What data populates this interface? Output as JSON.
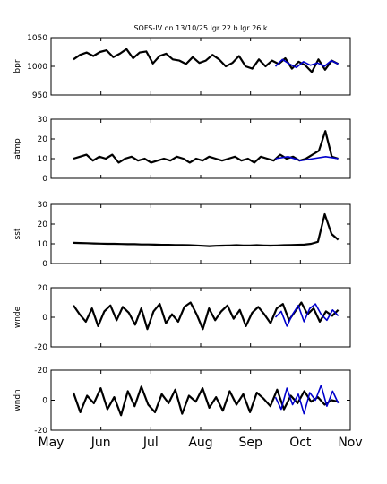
{
  "title": "SOFS-IV on 13/10/25 lgr 22 b lgr 26 k",
  "colors": {
    "primary": "#000000",
    "secondary": "#0000cc",
    "background": "#ffffff"
  },
  "chart_data": [
    {
      "type": "line",
      "ylabel": "bpr",
      "ylim": [
        950,
        1050
      ],
      "yticks": [
        "950",
        "1000",
        "1050"
      ],
      "series": [
        {
          "values": [
            1012,
            1020,
            1024,
            1018,
            1025,
            1028,
            1016,
            1022,
            1030,
            1014,
            1024,
            1026,
            1005,
            1018,
            1022,
            1012,
            1010,
            1004,
            1016,
            1006,
            1010,
            1020,
            1012,
            1000,
            1006,
            1018,
            1000,
            996,
            1012,
            1000,
            1010,
            1004,
            1014,
            996,
            1008,
            1002,
            990,
            1012,
            994,
            1010,
            1004
          ]
        },
        {
          "values": [
            1000,
            1012,
            1004,
            998,
            1008,
            1002,
            1006,
            1000,
            1010,
            1004
          ]
        }
      ]
    },
    {
      "type": "line",
      "ylabel": "atmp",
      "ylim": [
        0,
        30
      ],
      "yticks": [
        "0",
        "10",
        "20",
        "30"
      ],
      "series": [
        {
          "values": [
            10,
            11,
            12,
            9,
            11,
            10,
            12,
            8,
            10,
            11,
            9,
            10,
            8,
            9,
            10,
            9,
            11,
            10,
            8,
            10,
            9,
            11,
            10,
            9,
            10,
            11,
            9,
            10,
            8,
            11,
            10,
            9,
            12,
            10,
            11,
            9,
            10,
            12,
            14,
            24,
            11,
            10
          ]
        },
        {
          "values": [
            10,
            11,
            9,
            10,
            11,
            10
          ]
        }
      ]
    },
    {
      "type": "line",
      "ylabel": "sst",
      "ylim": [
        0,
        30
      ],
      "yticks": [
        "0",
        "10",
        "20",
        "30"
      ],
      "series": [
        {
          "values": [
            10.5,
            10.4,
            10.3,
            10.2,
            10.1,
            10.0,
            10.0,
            9.9,
            9.8,
            9.8,
            9.7,
            9.7,
            9.6,
            9.5,
            9.5,
            9.4,
            9.4,
            9.3,
            9.2,
            9.0,
            8.8,
            9.0,
            9.1,
            9.2,
            9.3,
            9.2,
            9.2,
            9.3,
            9.2,
            9.1,
            9.2,
            9.3,
            9.4,
            9.5,
            9.6,
            10,
            11,
            25,
            15,
            12
          ]
        }
      ]
    },
    {
      "type": "line",
      "ylabel": "wnde",
      "ylim": [
        -20,
        20
      ],
      "yticks": [
        "-20",
        "0",
        "20"
      ],
      "series": [
        {
          "values": [
            8,
            2,
            -3,
            6,
            -6,
            4,
            8,
            -2,
            7,
            3,
            -5,
            6,
            -8,
            4,
            9,
            -4,
            2,
            -3,
            7,
            10,
            2,
            -8,
            6,
            -2,
            4,
            8,
            -1,
            5,
            -6,
            3,
            7,
            2,
            -4,
            6,
            9,
            -2,
            4,
            10,
            2,
            6,
            -3,
            4,
            1,
            5
          ]
        },
        {
          "values": [
            0,
            4,
            -6,
            2,
            8,
            -3,
            6,
            9,
            2,
            -2,
            5,
            1
          ]
        }
      ]
    },
    {
      "type": "line",
      "ylabel": "wndn",
      "ylim": [
        -20,
        20
      ],
      "yticks": [
        "-20",
        "0",
        "20"
      ],
      "xticks": [
        "May",
        "Jun",
        "Jul",
        "Aug",
        "Sep",
        "Oct",
        "Nov"
      ],
      "series": [
        {
          "values": [
            5,
            -8,
            3,
            -2,
            8,
            -6,
            2,
            -10,
            6,
            -4,
            9,
            -3,
            -8,
            4,
            -2,
            7,
            -9,
            3,
            -1,
            8,
            -5,
            2,
            -7,
            6,
            -3,
            4,
            -8,
            5,
            1,
            -4,
            7,
            -6,
            3,
            -2,
            6,
            -1,
            2,
            -3,
            0,
            -1
          ]
        },
        {
          "values": [
            2,
            -6,
            8,
            -3,
            4,
            -9,
            5,
            0,
            10,
            -4,
            6,
            -2
          ]
        }
      ]
    }
  ]
}
